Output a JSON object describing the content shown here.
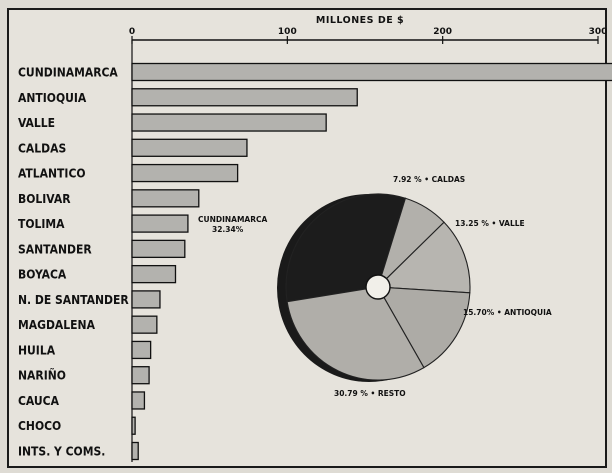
{
  "chart_data": [
    {
      "type": "bar",
      "orientation": "horizontal",
      "title": "MILLONES DE $",
      "xlim": [
        0,
        300
      ],
      "xticks": [
        "0",
        "100",
        "200",
        "300"
      ],
      "categories": [
        "CUNDINAMARCA",
        "ANTIOQUIA",
        "VALLE",
        "CALDAS",
        "ATLANTICO",
        "BOLIVAR",
        "TOLIMA",
        "SANTANDER",
        "BOYACA",
        "N. DE SANTANDER",
        "MAGDALENA",
        "HUILA",
        "NARIÑO",
        "CAUCA",
        "CHOCO",
        "INTS. Y COMS."
      ],
      "values": [
        310,
        145,
        125,
        74,
        68,
        43,
        36,
        34,
        28,
        18,
        16,
        12,
        11,
        8,
        2,
        4
      ],
      "grid": false,
      "colors": {
        "bar": "#b3b2ae",
        "bar_stroke": "#111111"
      }
    },
    {
      "type": "pie",
      "labels": [
        "CUNDINAMARCA",
        "CALDAS",
        "VALLE",
        "ANTIOQUIA",
        "RESTO"
      ],
      "label_texts": [
        "CUNDINAMARCA\n32.34%",
        "7.92 % • CALDAS",
        "13.25 % • VALLE",
        "15.70% • ANTIOQUIA",
        "30.79 % • RESTO"
      ],
      "values": [
        32.34,
        7.92,
        13.25,
        15.7,
        30.79
      ],
      "colors": [
        "#1c1c1c",
        "#b2b0ab",
        "#b7b5b0",
        "#adaba6",
        "#b0aea9"
      ]
    }
  ]
}
